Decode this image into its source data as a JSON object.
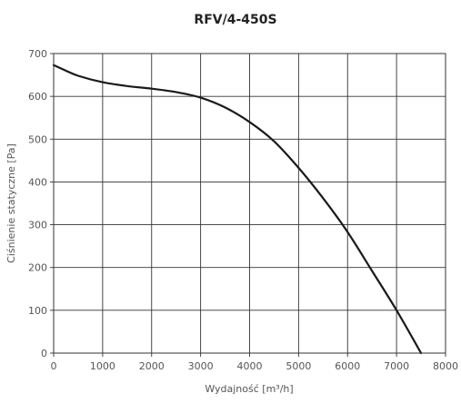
{
  "chart_data": {
    "type": "line",
    "title": "RFV/4-450S",
    "xlabel": "Wydajność [m³/h]",
    "ylabel": "Ciśnienie statyczne [Pa]",
    "xlim": [
      0,
      8000
    ],
    "ylim": [
      0,
      700
    ],
    "x_ticks": [
      0,
      1000,
      2000,
      3000,
      4000,
      5000,
      6000,
      7000,
      8000
    ],
    "y_ticks": [
      0,
      100,
      200,
      300,
      400,
      500,
      600,
      700
    ],
    "grid": true,
    "series": [
      {
        "color": "#1a1a1a",
        "x": [
          0,
          250,
          500,
          1000,
          1500,
          2000,
          2500,
          3000,
          3500,
          4000,
          4500,
          5000,
          5500,
          6000,
          6500,
          7000,
          7500
        ],
        "y": [
          673,
          660,
          648,
          633,
          624,
          618,
          610,
          597,
          574,
          540,
          495,
          433,
          362,
          283,
          192,
          100,
          0
        ]
      }
    ]
  }
}
